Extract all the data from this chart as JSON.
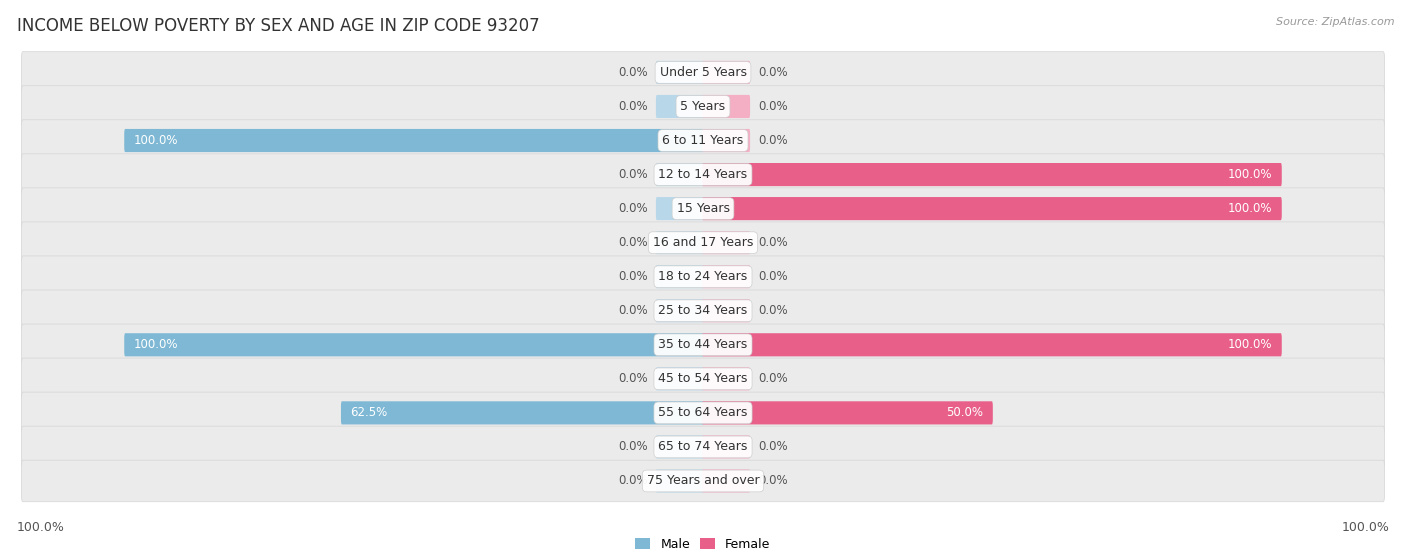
{
  "title": "INCOME BELOW POVERTY BY SEX AND AGE IN ZIP CODE 93207",
  "source": "Source: ZipAtlas.com",
  "categories": [
    "Under 5 Years",
    "5 Years",
    "6 to 11 Years",
    "12 to 14 Years",
    "15 Years",
    "16 and 17 Years",
    "18 to 24 Years",
    "25 to 34 Years",
    "35 to 44 Years",
    "45 to 54 Years",
    "55 to 64 Years",
    "65 to 74 Years",
    "75 Years and over"
  ],
  "male_values": [
    0.0,
    0.0,
    100.0,
    0.0,
    0.0,
    0.0,
    0.0,
    0.0,
    100.0,
    0.0,
    62.5,
    0.0,
    0.0
  ],
  "female_values": [
    0.0,
    0.0,
    0.0,
    100.0,
    100.0,
    0.0,
    0.0,
    0.0,
    100.0,
    0.0,
    50.0,
    0.0,
    0.0
  ],
  "male_color": "#7eb8d4",
  "male_stub_color": "#b8d8ea",
  "female_color": "#e8608a",
  "female_stub_color": "#f4afc5",
  "male_label": "Male",
  "female_label": "Female",
  "row_bg_color": "#ebebeb",
  "row_border_color": "#d5d5d5",
  "max_val": 100.0,
  "stub_val": 8.0,
  "title_fontsize": 12,
  "source_fontsize": 8,
  "label_fontsize": 9,
  "cat_fontsize": 9,
  "value_fontsize": 8.5
}
